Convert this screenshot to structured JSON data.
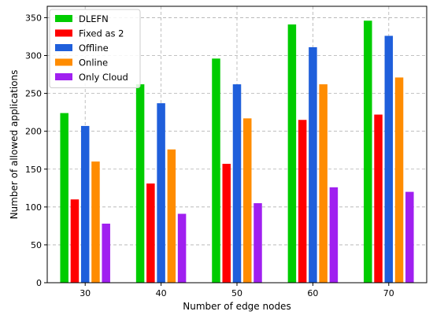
{
  "chart_data": {
    "type": "bar",
    "xlabel": "Number of edge nodes",
    "ylabel": "Number of allowed applications",
    "categories": [
      "30",
      "40",
      "50",
      "60",
      "70"
    ],
    "ylim": [
      0,
      365
    ],
    "yticks": [
      0,
      50,
      100,
      150,
      200,
      250,
      300,
      350
    ],
    "grid": true,
    "legend_position": "upper-left",
    "series": [
      {
        "name": "DLEFN",
        "color": "#00cc00",
        "values": [
          224,
          262,
          296,
          341,
          346
        ]
      },
      {
        "name": "Fixed as 2",
        "color": "#ff0000",
        "values": [
          110,
          131,
          157,
          215,
          222
        ]
      },
      {
        "name": "Offline",
        "color": "#1f5fdb",
        "values": [
          207,
          237,
          262,
          311,
          326
        ]
      },
      {
        "name": "Online",
        "color": "#ff8c00",
        "values": [
          160,
          176,
          217,
          262,
          271
        ]
      },
      {
        "name": "Only Cloud",
        "color": "#a020f0",
        "values": [
          78,
          91,
          105,
          126,
          120
        ]
      }
    ]
  }
}
